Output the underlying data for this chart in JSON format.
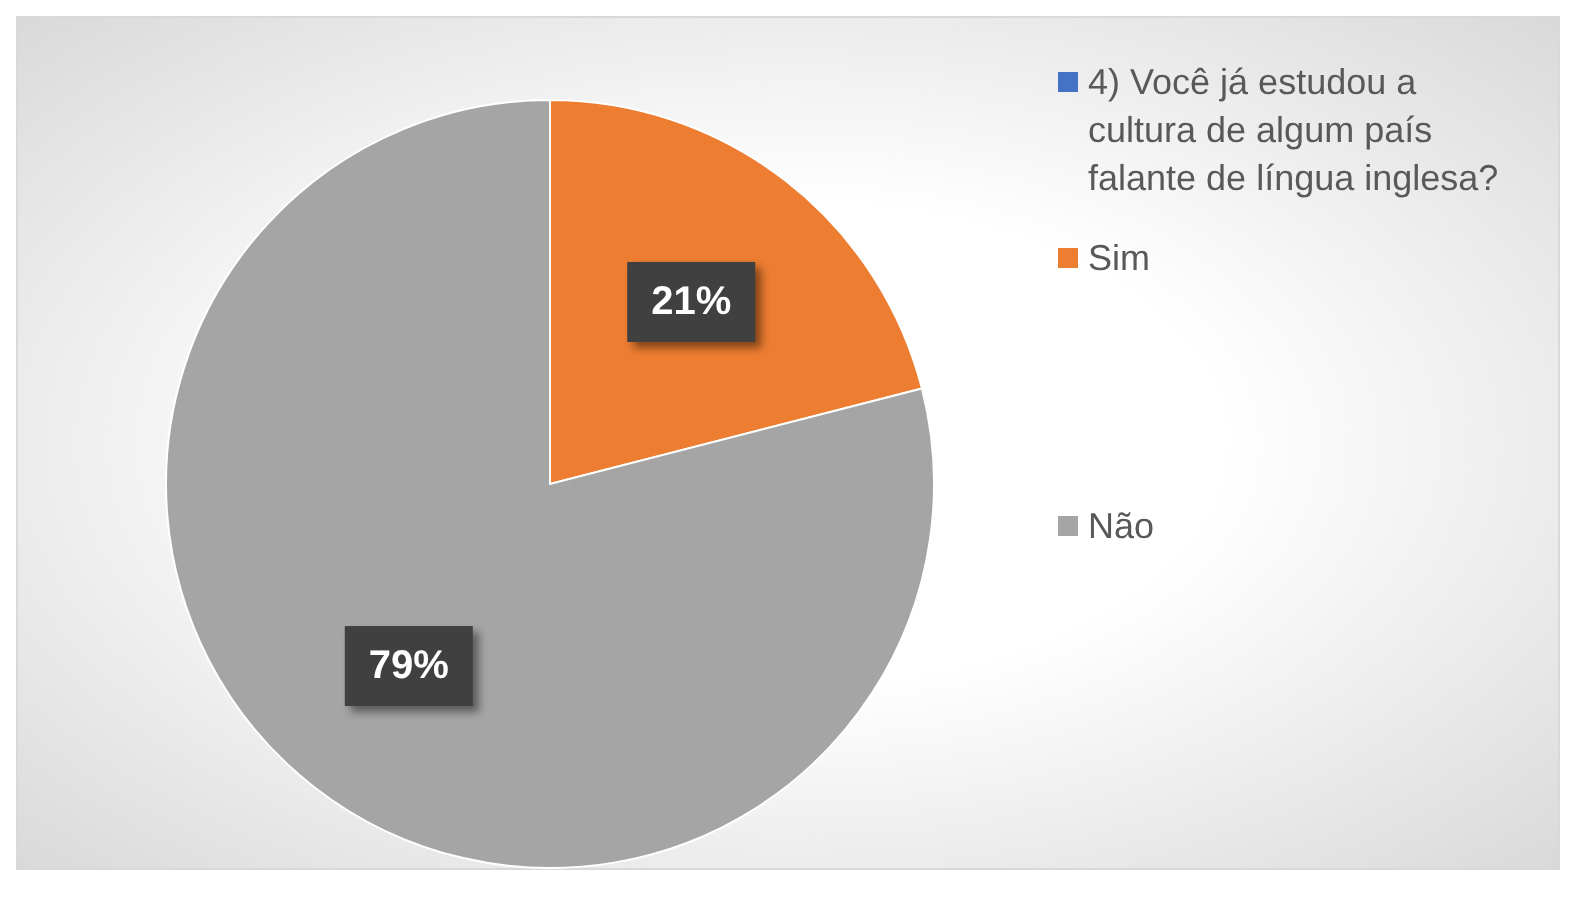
{
  "chart_data": {
    "type": "pie",
    "categories": [
      "4)  Você já estudou a cultura de algum país falante de língua inglesa?",
      "Sim",
      "Não"
    ],
    "values": [
      0,
      21,
      79
    ],
    "colors": [
      "#4472c4",
      "#ed7d31",
      "#a5a5a5"
    ],
    "value_labels": [
      null,
      "21%",
      "79%"
    ],
    "legend": "right"
  }
}
